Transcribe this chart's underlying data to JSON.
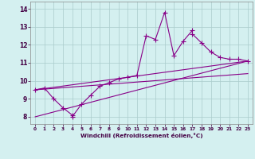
{
  "xlabel": "Windchill (Refroidissement éolien,°C)",
  "bg_color": "#d4f0f0",
  "line_color": "#880088",
  "grid_color": "#aacccc",
  "x_data": [
    0,
    1,
    2,
    3,
    4,
    4,
    5,
    6,
    7,
    8,
    9,
    10,
    11,
    12,
    13,
    14,
    15,
    16,
    17,
    17,
    18,
    19,
    20,
    21,
    22,
    23
  ],
  "y_main": [
    9.5,
    9.6,
    9.0,
    8.5,
    8.1,
    8.0,
    8.7,
    9.2,
    9.7,
    9.9,
    10.1,
    10.2,
    10.3,
    12.5,
    12.3,
    13.8,
    11.4,
    12.2,
    12.8,
    12.6,
    12.1,
    11.6,
    11.3,
    11.2,
    11.2,
    11.1
  ],
  "trend1_x": [
    0,
    23
  ],
  "trend1_y": [
    9.5,
    11.1
  ],
  "trend2_x": [
    0,
    23
  ],
  "trend2_y": [
    9.5,
    10.4
  ],
  "trend3_x": [
    0,
    23
  ],
  "trend3_y": [
    8.0,
    11.1
  ],
  "xlim": [
    -0.5,
    23.5
  ],
  "ylim": [
    7.6,
    14.4
  ],
  "yticks": [
    8,
    9,
    10,
    11,
    12,
    13,
    14
  ],
  "xticks": [
    0,
    1,
    2,
    3,
    4,
    5,
    6,
    7,
    8,
    9,
    10,
    11,
    12,
    13,
    14,
    15,
    16,
    17,
    18,
    19,
    20,
    21,
    22,
    23
  ]
}
